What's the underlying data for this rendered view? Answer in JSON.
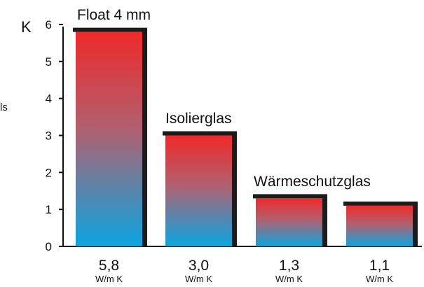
{
  "chart_data": {
    "type": "bar",
    "ylabel": "K",
    "side_label": "ls",
    "ylim": [
      0,
      6
    ],
    "yticks": [
      "0",
      "1",
      "2",
      "3",
      "4",
      "5",
      "6"
    ],
    "categories": [
      "Float 4 mm",
      "Isolierglas",
      "",
      "Wärmeschutzglas"
    ],
    "values": [
      5.8,
      3.0,
      1.3,
      1.1
    ],
    "value_labels": [
      "5,8",
      "3,0",
      "1,3",
      "1,1"
    ],
    "unit_label": "W/m  K",
    "group_labels": [
      "Float 4 mm",
      "Isolierglas",
      "Wärmeschutzglas"
    ],
    "colors": {
      "top": "#ee2a2a",
      "bottom": "#0aa6e0",
      "shadow": "#1c1c1c",
      "axis": "#111111"
    }
  }
}
